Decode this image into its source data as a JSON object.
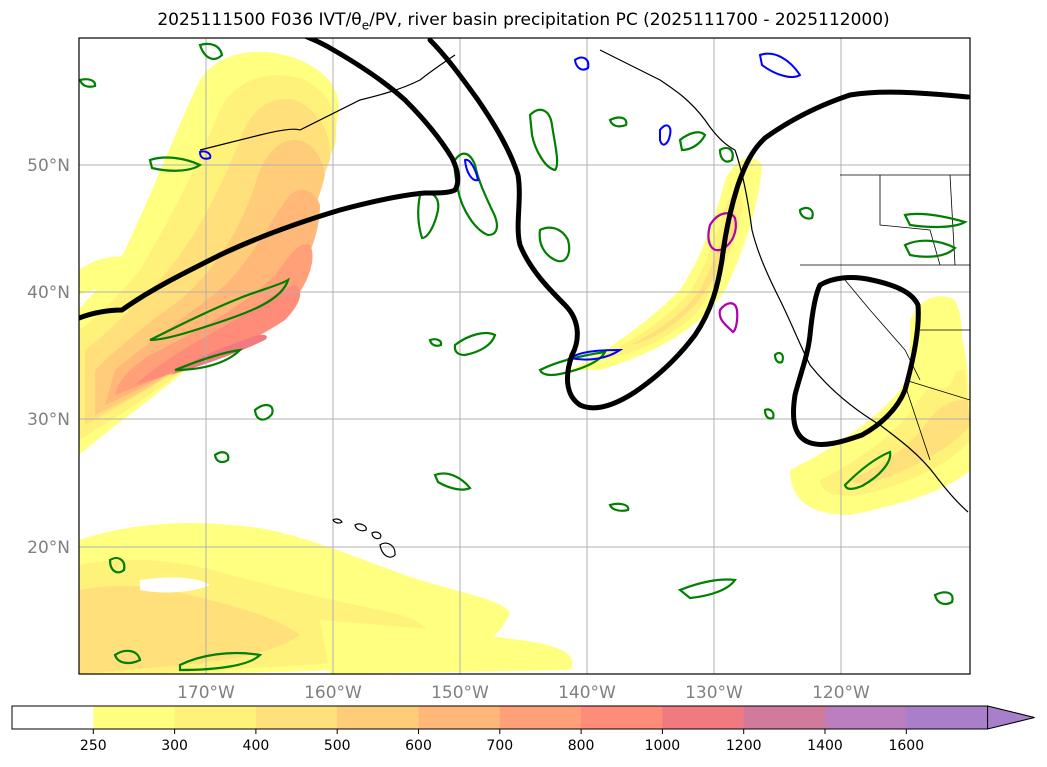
{
  "title": {
    "prefix": "2025111500 F036 IVT/",
    "theta": "θ",
    "theta_sub": "e",
    "suffix": "/PV, river basin precipitation PC (2025111700 - 2025112000)"
  },
  "lat_labels": [
    "50°N",
    "40°N",
    "30°N",
    "20°N"
  ],
  "lon_labels": [
    "170°W",
    "160°W",
    "150°W",
    "140°W",
    "130°W",
    "120°W"
  ],
  "colorbar": {
    "ticks": [
      "250",
      "300",
      "400",
      "500",
      "600",
      "700",
      "800",
      "1000",
      "1200",
      "1400",
      "1600"
    ],
    "colors": [
      "#ffffff",
      "#ffff80",
      "#fff27a",
      "#ffe07a",
      "#ffcc7a",
      "#ffb878",
      "#ffa078",
      "#ff8c78",
      "#f07a80",
      "#d27a9c",
      "#bb7fbf",
      "#a77fca"
    ]
  },
  "legend_colors": {
    "ivt_low": "#ffff80",
    "ivt_mid": "#ffcc7a",
    "ivt_high": "#f07a80",
    "pv_contour": "#000000",
    "theta_contour": "#008000",
    "precip_blue": "#0000ff",
    "precip_magenta": "#b000b0"
  }
}
